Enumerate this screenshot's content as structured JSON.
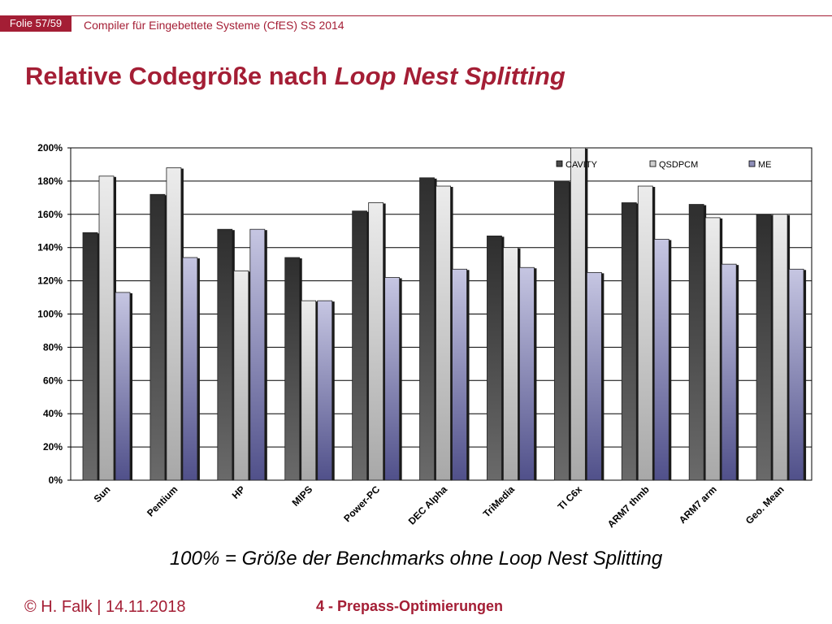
{
  "header": {
    "slide_label": "Folie 57/59",
    "course": "Compiler für Eingebettete Systeme (CfES) SS 2014"
  },
  "slide": {
    "title_main": "Relative Codegröße nach ",
    "title_em": "Loop Nest Splitting",
    "caption": "100% = Größe der Benchmarks ohne Loop Nest Splitting"
  },
  "footer": {
    "left": "© H. Falk | 14.11.2018",
    "center": "4 - Prepass-Optimierungen"
  },
  "colors": {
    "accent": "#a41e35",
    "cavity": "#4a4a4a",
    "qsdpcm": "#d0d0d0",
    "me": "#8e8eb8"
  },
  "chart_data": {
    "type": "bar",
    "categories": [
      "Sun",
      "Pentium",
      "HP",
      "MIPS",
      "Power-PC",
      "DEC Alpha",
      "TriMedia",
      "TI C6x",
      "ARM7 thmb",
      "ARM7 arm",
      "Geo. Mean"
    ],
    "series": [
      {
        "name": "CAVITY",
        "values": [
          149,
          172,
          151,
          134,
          162,
          182,
          147,
          180,
          167,
          166,
          160
        ]
      },
      {
        "name": "QSDPCM",
        "values": [
          183,
          188,
          126,
          108,
          167,
          177,
          140,
          200,
          177,
          158,
          160
        ]
      },
      {
        "name": "ME",
        "values": [
          113,
          134,
          151,
          108,
          122,
          127,
          128,
          125,
          145,
          130,
          127
        ]
      }
    ],
    "ylim": [
      0,
      200
    ],
    "yticks": [
      "0%",
      "20%",
      "40%",
      "60%",
      "80%",
      "100%",
      "120%",
      "140%",
      "160%",
      "180%",
      "200%"
    ],
    "grid": true,
    "legend": "top-right"
  }
}
